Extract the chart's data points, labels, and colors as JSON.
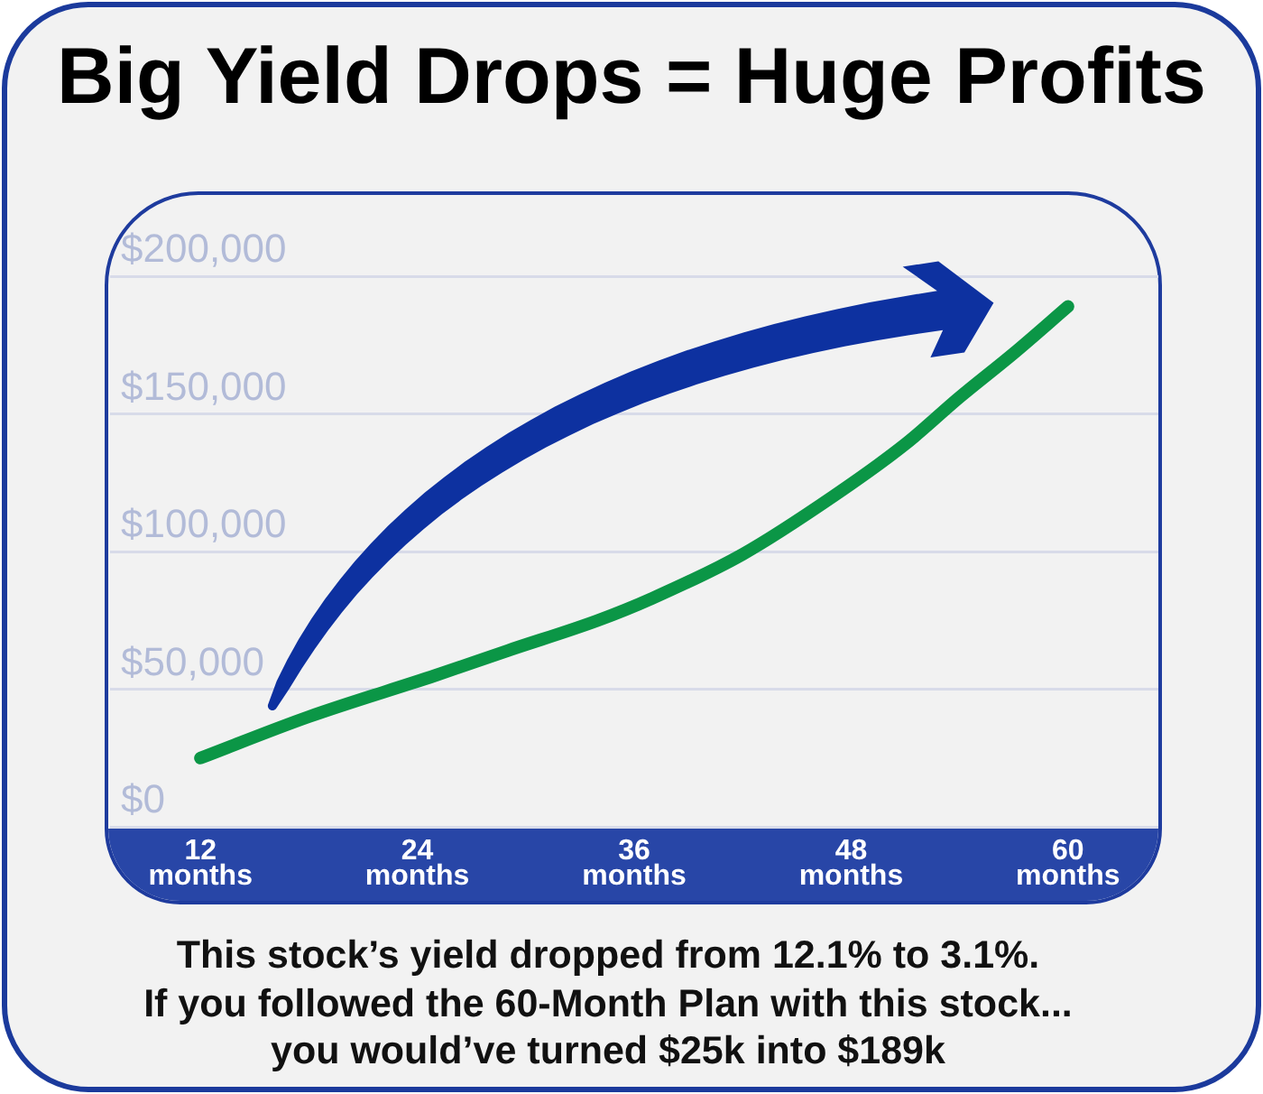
{
  "chart_data": {
    "type": "line",
    "title": "Big Yield Drops = Huge Profits",
    "x": [
      12,
      18,
      25,
      29,
      34,
      37,
      42,
      47,
      51,
      54,
      57,
      60
    ],
    "series": [
      {
        "color": "#0b9646",
        "values": [
          25000,
          40000,
          55000,
          64000,
          75000,
          83000,
          99000,
          120000,
          139000,
          156000,
          172000,
          189000
        ]
      }
    ],
    "xlim": [
      7,
      65
    ],
    "xticks": [
      {
        "value": 12,
        "label": "12 months"
      },
      {
        "value": 24,
        "label": "24 months"
      },
      {
        "value": 36,
        "label": "36 months"
      },
      {
        "value": 48,
        "label": "48 months"
      },
      {
        "value": 60,
        "label": "60 months"
      }
    ],
    "ylim": [
      0,
      230000
    ],
    "yticks": [
      {
        "value": 0,
        "label": "$0"
      },
      {
        "value": 50000,
        "label": "$50,000"
      },
      {
        "value": 100000,
        "label": "$100,000"
      },
      {
        "value": 150000,
        "label": "$150,000"
      },
      {
        "value": 200000,
        "label": "$200,000"
      }
    ],
    "grid": "y",
    "line_style": "solid",
    "annotations": [
      "This stock’s yield dropped from 12.1% to 3.1%.",
      "If you followed the 60-Month Plan with this stock...",
      "you would’ve turned $25k into $189k"
    ]
  }
}
